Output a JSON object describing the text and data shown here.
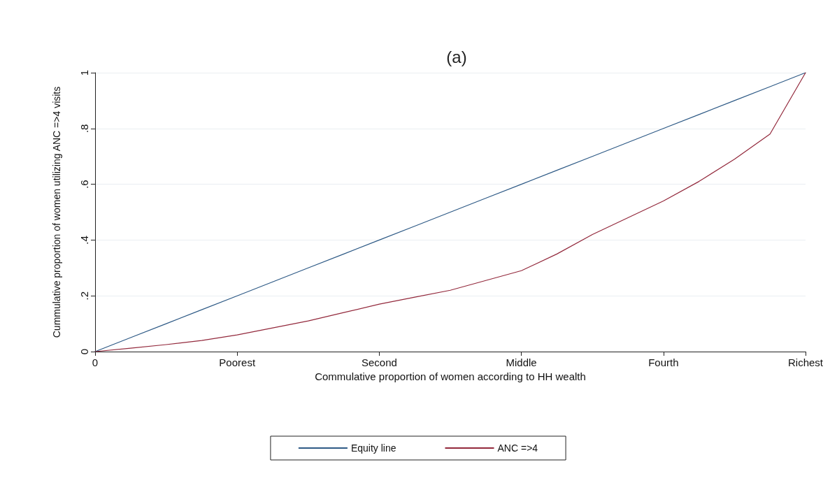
{
  "chart_data": {
    "type": "line",
    "title": "(a)",
    "xlabel": "Commulative proportion of women according to HH wealth",
    "ylabel": "Cummulative proportion of women utilizing ANC =>4 visits",
    "categories": [
      "0",
      null,
      null,
      null,
      "Poorest",
      null,
      null,
      null,
      "Second",
      null,
      null,
      null,
      "Middle",
      null,
      null,
      null,
      "Fourth",
      null,
      null,
      null,
      "Richest"
    ],
    "ylim": [
      0,
      1
    ],
    "yticks": [
      0,
      {
        "value": 0.2,
        "label": ".2"
      },
      {
        "value": 0.4,
        "label": ".4"
      },
      {
        "value": 0.6,
        "label": ".6"
      },
      {
        "value": 0.8,
        "label": ".8"
      },
      1
    ],
    "grid": "y",
    "legend": "bottom",
    "marker": "none",
    "line_style": "solid",
    "series": [
      {
        "name": "Equity line",
        "color": "#2e5a86",
        "values": [
          0,
          0.05,
          0.1,
          0.15,
          0.2,
          0.25,
          0.3,
          0.35,
          0.4,
          0.45,
          0.5,
          0.55,
          0.6,
          0.65,
          0.7,
          0.75,
          0.8,
          0.85,
          0.9,
          0.95,
          1
        ]
      },
      {
        "name": "ANC =>4",
        "color": "#93293c",
        "values": [
          0,
          0.012,
          0.025,
          0.04,
          0.06,
          0.085,
          0.11,
          0.14,
          0.17,
          0.195,
          0.22,
          0.255,
          0.29,
          0.35,
          0.42,
          0.48,
          0.54,
          0.61,
          0.69,
          0.78,
          1
        ]
      }
    ]
  }
}
